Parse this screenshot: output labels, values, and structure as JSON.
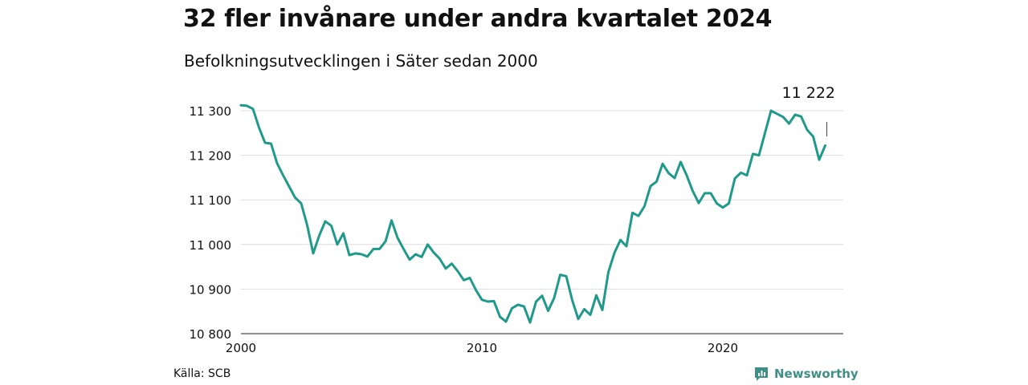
{
  "title": "32 fler invånare under andra kvartalet 2024",
  "subtitle": "Befolkningsutvecklingen i Säter sedan 2000",
  "source": "Källa: SCB",
  "brand": {
    "name": "Newsworthy",
    "icon": "newsworthy-logo-icon",
    "color": "#3f8f86"
  },
  "colors": {
    "line": "#1f9a8a",
    "grid": "#dddddd",
    "axis": "#222222"
  },
  "chart_data": {
    "type": "line",
    "title": "32 fler invånare under andra kvartalet 2024",
    "subtitle": "Befolkningsutvecklingen i Säter sedan 2000",
    "xlabel": "",
    "ylabel": "",
    "xlim": [
      2000,
      2025.5
    ],
    "ylim": [
      10800,
      11320
    ],
    "x_ticks": [
      2000,
      2010,
      2020
    ],
    "x_tick_labels": [
      "2000",
      "2010",
      "2020"
    ],
    "y_ticks": [
      10800,
      10900,
      11000,
      11100,
      11200,
      11300
    ],
    "y_tick_labels": [
      "10 800",
      "10 900",
      "11 000",
      "11 100",
      "11 200",
      "11 300"
    ],
    "grid": true,
    "annotation": {
      "label": "11 222",
      "x": 2024.25,
      "y": 11222
    },
    "series": [
      {
        "x": [
          2000.0,
          2000.25,
          2000.5,
          2000.75,
          2001.0,
          2001.25,
          2001.5,
          2001.75,
          2002.0,
          2002.25,
          2002.5,
          2002.75,
          2003.0,
          2003.25,
          2003.5,
          2003.75,
          2004.0,
          2004.25,
          2004.5,
          2004.75,
          2005.0,
          2005.25,
          2005.5,
          2005.75,
          2006.0,
          2006.25,
          2006.5,
          2006.75,
          2007.0,
          2007.25,
          2007.5,
          2007.75,
          2008.0,
          2008.25,
          2008.5,
          2008.75,
          2009.0,
          2009.25,
          2009.5,
          2009.75,
          2010.0,
          2010.25,
          2010.5,
          2010.75,
          2011.0,
          2011.25,
          2011.5,
          2011.75,
          2012.0,
          2012.25,
          2012.5,
          2012.75,
          2013.0,
          2013.25,
          2013.5,
          2013.75,
          2014.0,
          2014.25,
          2014.5,
          2014.75,
          2015.0,
          2015.25,
          2015.5,
          2015.75,
          2016.0,
          2016.25,
          2016.5,
          2016.75,
          2017.0,
          2017.25,
          2017.5,
          2017.75,
          2018.0,
          2018.25,
          2018.5,
          2018.75,
          2019.0,
          2019.25,
          2019.5,
          2019.75,
          2020.0,
          2020.25,
          2020.5,
          2020.75,
          2021.0,
          2021.25,
          2021.5,
          2021.75,
          2022.0,
          2022.25,
          2022.5,
          2022.75,
          2023.0,
          2023.25,
          2023.5,
          2023.75,
          2024.0,
          2024.25
        ],
        "values": [
          11312,
          11311,
          11304,
          11262,
          11228,
          11226,
          11182,
          11155,
          11130,
          11105,
          11092,
          11043,
          10980,
          11020,
          11052,
          11042,
          11000,
          11025,
          10976,
          10980,
          10978,
          10973,
          10990,
          10990,
          11007,
          11054,
          11015,
          10990,
          10966,
          10978,
          10972,
          11000,
          10982,
          10968,
          10946,
          10957,
          10940,
          10920,
          10925,
          10898,
          10876,
          10872,
          10873,
          10838,
          10827,
          10857,
          10865,
          10861,
          10825,
          10872,
          10885,
          10851,
          10880,
          10932,
          10929,
          10875,
          10833,
          10855,
          10842,
          10886,
          10853,
          10938,
          10981,
          11010,
          10996,
          11071,
          11064,
          11086,
          11131,
          11141,
          11181,
          11160,
          11149,
          11185,
          11155,
          11120,
          11093,
          11115,
          11115,
          11092,
          11083,
          11092,
          11148,
          11161,
          11155,
          11203,
          11200,
          11250,
          11300,
          11293,
          11286,
          11271,
          11291,
          11287,
          11257,
          11242,
          11190,
          11222
        ]
      }
    ]
  }
}
